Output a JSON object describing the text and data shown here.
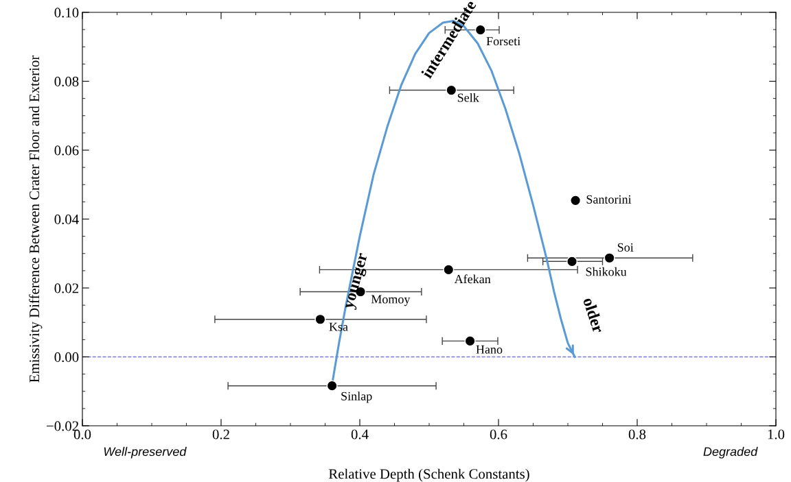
{
  "chart_data": {
    "type": "scatter",
    "xlabel": "Relative Depth (Schenk Constants)",
    "ylabel": "Emissivity Difference Between Crater Floor and Exterior",
    "xlim": [
      0.0,
      1.0
    ],
    "ylim": [
      -0.02,
      0.1
    ],
    "xticks": [
      {
        "value": 0,
        "label": "0.0"
      },
      0.2,
      0.4,
      0.6,
      0.8,
      {
        "value": 1,
        "label": "1.0"
      }
    ],
    "yticks": [
      {
        "value": -0.02,
        "label": "−0.02"
      },
      {
        "value": 0.0,
        "label": "0.00"
      },
      {
        "value": 0.02,
        "label": "0.02"
      },
      {
        "value": 0.04,
        "label": "0.04"
      },
      {
        "value": 0.06,
        "label": "0.06"
      },
      {
        "value": 0.08,
        "label": "0.08"
      },
      {
        "value": 0.1,
        "label": "0.10"
      }
    ],
    "grid": false,
    "marker": "circle",
    "series": [
      {
        "color": "#000000",
        "x": [
          0.574,
          0.532,
          0.711,
          0.76,
          0.706,
          0.528,
          0.401,
          0.343,
          0.559,
          0.36
        ],
        "values": [
          0.0949,
          0.0774,
          0.0454,
          0.0287,
          0.0277,
          0.0253,
          0.0189,
          0.0109,
          0.0046,
          -0.0084
        ],
        "xerrors": [
          [
            0.523,
            0.601
          ],
          [
            0.443,
            0.622
          ],
          null,
          [
            0.642,
            0.88
          ],
          [
            0.664,
            0.75
          ],
          [
            0.342,
            0.714
          ],
          [
            0.314,
            0.489
          ],
          [
            0.191,
            0.496
          ],
          [
            0.519,
            0.599
          ],
          [
            0.21,
            0.51
          ]
        ]
      },
      {
        "type": "line",
        "color": "#5b9bd5",
        "marker": "none",
        "x": [
          0.36,
          0.37,
          0.38,
          0.39,
          0.4,
          0.42,
          0.44,
          0.46,
          0.48,
          0.5,
          0.52,
          0.535,
          0.55,
          0.57,
          0.59,
          0.61,
          0.63,
          0.65,
          0.66,
          0.67,
          0.68,
          0.69,
          0.7,
          0.71
        ],
        "values": [
          -0.008,
          0.004,
          0.015,
          0.025,
          0.035,
          0.053,
          0.067,
          0.079,
          0.088,
          0.094,
          0.097,
          0.0975,
          0.096,
          0.091,
          0.083,
          0.072,
          0.059,
          0.044,
          0.036,
          0.028,
          0.019,
          0.011,
          0.004,
          0.0
        ]
      }
    ],
    "ref_lines": [
      {
        "axis": "y",
        "value": 0.0,
        "color": "#7b7bd0",
        "line_style": "dashed"
      }
    ],
    "annotations": [
      {
        "text": "Forseti",
        "x": 0.574,
        "y": 0.0949
      },
      {
        "text": "Selk",
        "x": 0.532,
        "y": 0.0774
      },
      {
        "text": "Santorini",
        "x": 0.711,
        "y": 0.0454
      },
      {
        "text": "Soi",
        "x": 0.76,
        "y": 0.0287
      },
      {
        "text": "Shikoku",
        "x": 0.706,
        "y": 0.0277
      },
      {
        "text": "Afekan",
        "x": 0.528,
        "y": 0.0253
      },
      {
        "text": "Momoy",
        "x": 0.401,
        "y": 0.0189
      },
      {
        "text": "Ksa",
        "x": 0.343,
        "y": 0.0109
      },
      {
        "text": "Hano",
        "x": 0.559,
        "y": 0.0046
      },
      {
        "text": "Sinlap",
        "x": 0.36,
        "y": -0.0084
      },
      "intermediate",
      "younger",
      "older",
      "Well-preserved",
      "Degraded"
    ]
  }
}
